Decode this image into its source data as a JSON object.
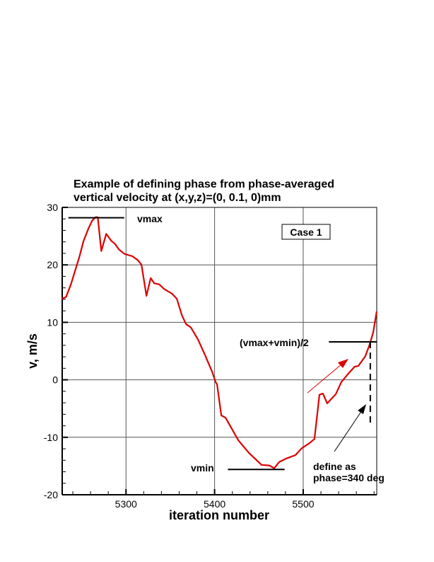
{
  "chart_data": {
    "type": "line",
    "title": [
      "Example of defining phase from phase-averaged",
      "vertical velocity at (x,y,z)=(0, 0.1, 0)mm"
    ],
    "xlabel": "iteration number",
    "ylabel": "v, m/s",
    "xlim": [
      5228,
      5583
    ],
    "ylim": [
      -20,
      30
    ],
    "xticks": [
      5300,
      5400,
      5500
    ],
    "yticks": [
      -20,
      -10,
      0,
      10,
      20,
      30
    ],
    "grid": true,
    "legend_box": "Case 1",
    "series_color": "#dd0000",
    "x": [
      5227.5,
      5232.3,
      5237.8,
      5247.4,
      5252.2,
      5257.8,
      5261.8,
      5265.7,
      5268.1,
      5272.1,
      5277.7,
      5283.3,
      5287.3,
      5292.0,
      5298.4,
      5307.2,
      5313.5,
      5317.5,
      5323.1,
      5327.9,
      5331.9,
      5337.5,
      5343.0,
      5351.8,
      5357.4,
      5362.9,
      5367.7,
      5373.3,
      5381.3,
      5389.2,
      5397.2,
      5401.2,
      5402.8,
      5407.6,
      5412.4,
      5426.7,
      5438.6,
      5453.0,
      5461.8,
      5467.3,
      5472.9,
      5480.9,
      5491.2,
      5498.4,
      5506.4,
      5512.7,
      5518.3,
      5522.3,
      5527.1,
      5536.7,
      5543.0,
      5551.0,
      5558.2,
      5562.2,
      5570.1,
      5574.9,
      5578.9,
      5582.9
    ],
    "y": [
      14.1,
      14.4,
      16.6,
      21.4,
      24.2,
      26.4,
      27.7,
      28.3,
      28.3,
      22.4,
      25.4,
      24.2,
      23.7,
      22.7,
      21.9,
      21.5,
      20.8,
      20.0,
      14.6,
      17.7,
      16.8,
      16.6,
      15.8,
      15.0,
      14.1,
      11.3,
      9.7,
      9.1,
      7.0,
      4.3,
      1.4,
      -0.4,
      -0.8,
      -6.2,
      -6.6,
      -10.5,
      -12.7,
      -14.8,
      -14.9,
      -15.4,
      -14.3,
      -13.7,
      -13.1,
      -11.9,
      -11.1,
      -10.3,
      -2.6,
      -2.4,
      -4.1,
      -2.5,
      -0.4,
      1.1,
      2.3,
      2.4,
      4.1,
      6.1,
      8.2,
      11.9
    ],
    "annotations": {
      "vmax": {
        "label": "vmax",
        "value": 28.2,
        "x_range": [
          5235,
          5298
        ]
      },
      "vmin": {
        "label": "vmin",
        "value": -15.6,
        "x_range": [
          5415,
          5479
        ]
      },
      "mid": {
        "label": "(vmax+vmin)/2",
        "value": 6.6,
        "x_range": [
          5529,
          5583
        ]
      },
      "phase_marker": {
        "x": 5575.7,
        "y_range": [
          -7.8,
          6.6
        ]
      },
      "phase_label": [
        "define as",
        "phase=340 deg"
      ]
    }
  }
}
